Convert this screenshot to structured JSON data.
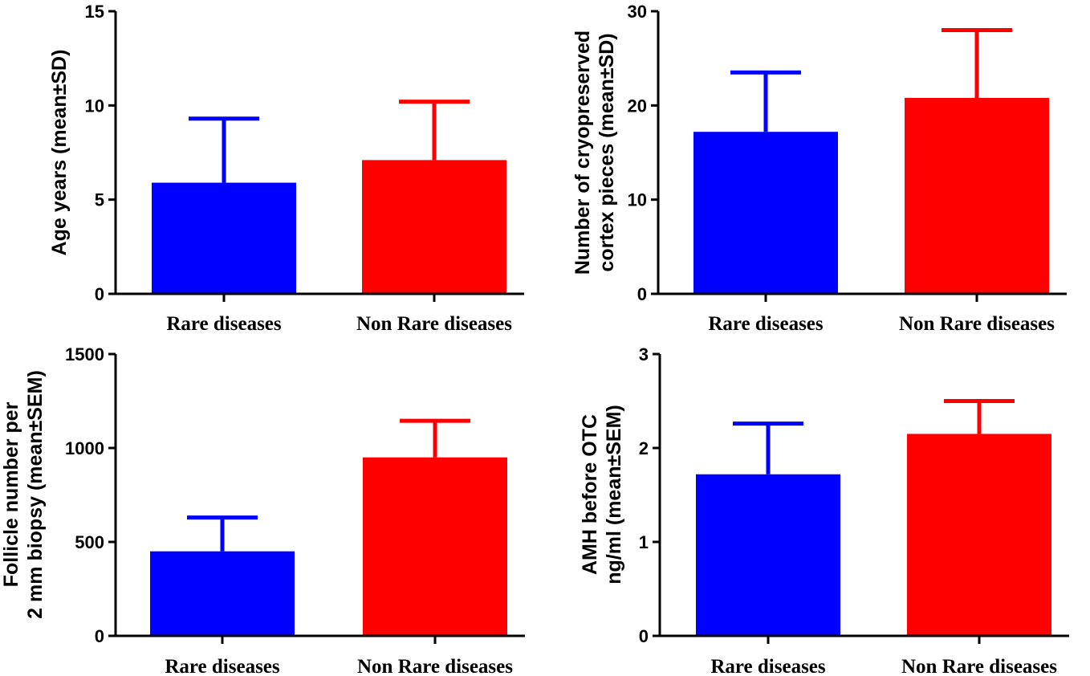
{
  "colors": {
    "rare": "#0000ff",
    "non_rare": "#ff0000"
  },
  "chart_data": [
    {
      "type": "bar",
      "categories": [
        "Rare diseases",
        "Non Rare diseases"
      ],
      "values": [
        5.9,
        7.1
      ],
      "errors": [
        3.4,
        3.1
      ],
      "ylabel": [
        "Age years (mean±SD)"
      ],
      "ylim": [
        0,
        15
      ],
      "yticks": [
        0,
        5,
        10,
        15
      ],
      "ytick_labels": [
        "0",
        "5",
        "10",
        "15"
      ],
      "grid": false
    },
    {
      "type": "bar",
      "categories": [
        "Rare diseases",
        "Non Rare diseases"
      ],
      "values": [
        17.2,
        20.8
      ],
      "errors": [
        6.3,
        7.2
      ],
      "ylabel": [
        "Number of cryopreserved",
        "cortex pieces (mean±SD)"
      ],
      "ylim": [
        0,
        30
      ],
      "yticks": [
        0,
        10,
        20,
        30
      ],
      "ytick_labels": [
        "0",
        "10",
        "20",
        "30"
      ],
      "grid": false
    },
    {
      "type": "bar",
      "categories": [
        "Rare diseases",
        "Non Rare diseases"
      ],
      "values": [
        450,
        950
      ],
      "errors": [
        180,
        195
      ],
      "ylabel": [
        "Follicle number per",
        "2 mm biopsy (mean±SEM)"
      ],
      "ylim": [
        0,
        1500
      ],
      "yticks": [
        0,
        500,
        1000,
        1500
      ],
      "ytick_labels": [
        "0",
        "500",
        "1000",
        "1500"
      ],
      "grid": false
    },
    {
      "type": "bar",
      "categories": [
        "Rare diseases",
        "Non Rare diseases"
      ],
      "values": [
        1.72,
        2.15
      ],
      "errors": [
        0.54,
        0.35
      ],
      "ylabel": [
        "AMH before OTC",
        "ng/ml (mean±SEM)"
      ],
      "ylim": [
        0,
        3
      ],
      "yticks": [
        0,
        1,
        2,
        3
      ],
      "ytick_labels": [
        "0",
        "1",
        "2",
        "3"
      ],
      "grid": false
    }
  ]
}
